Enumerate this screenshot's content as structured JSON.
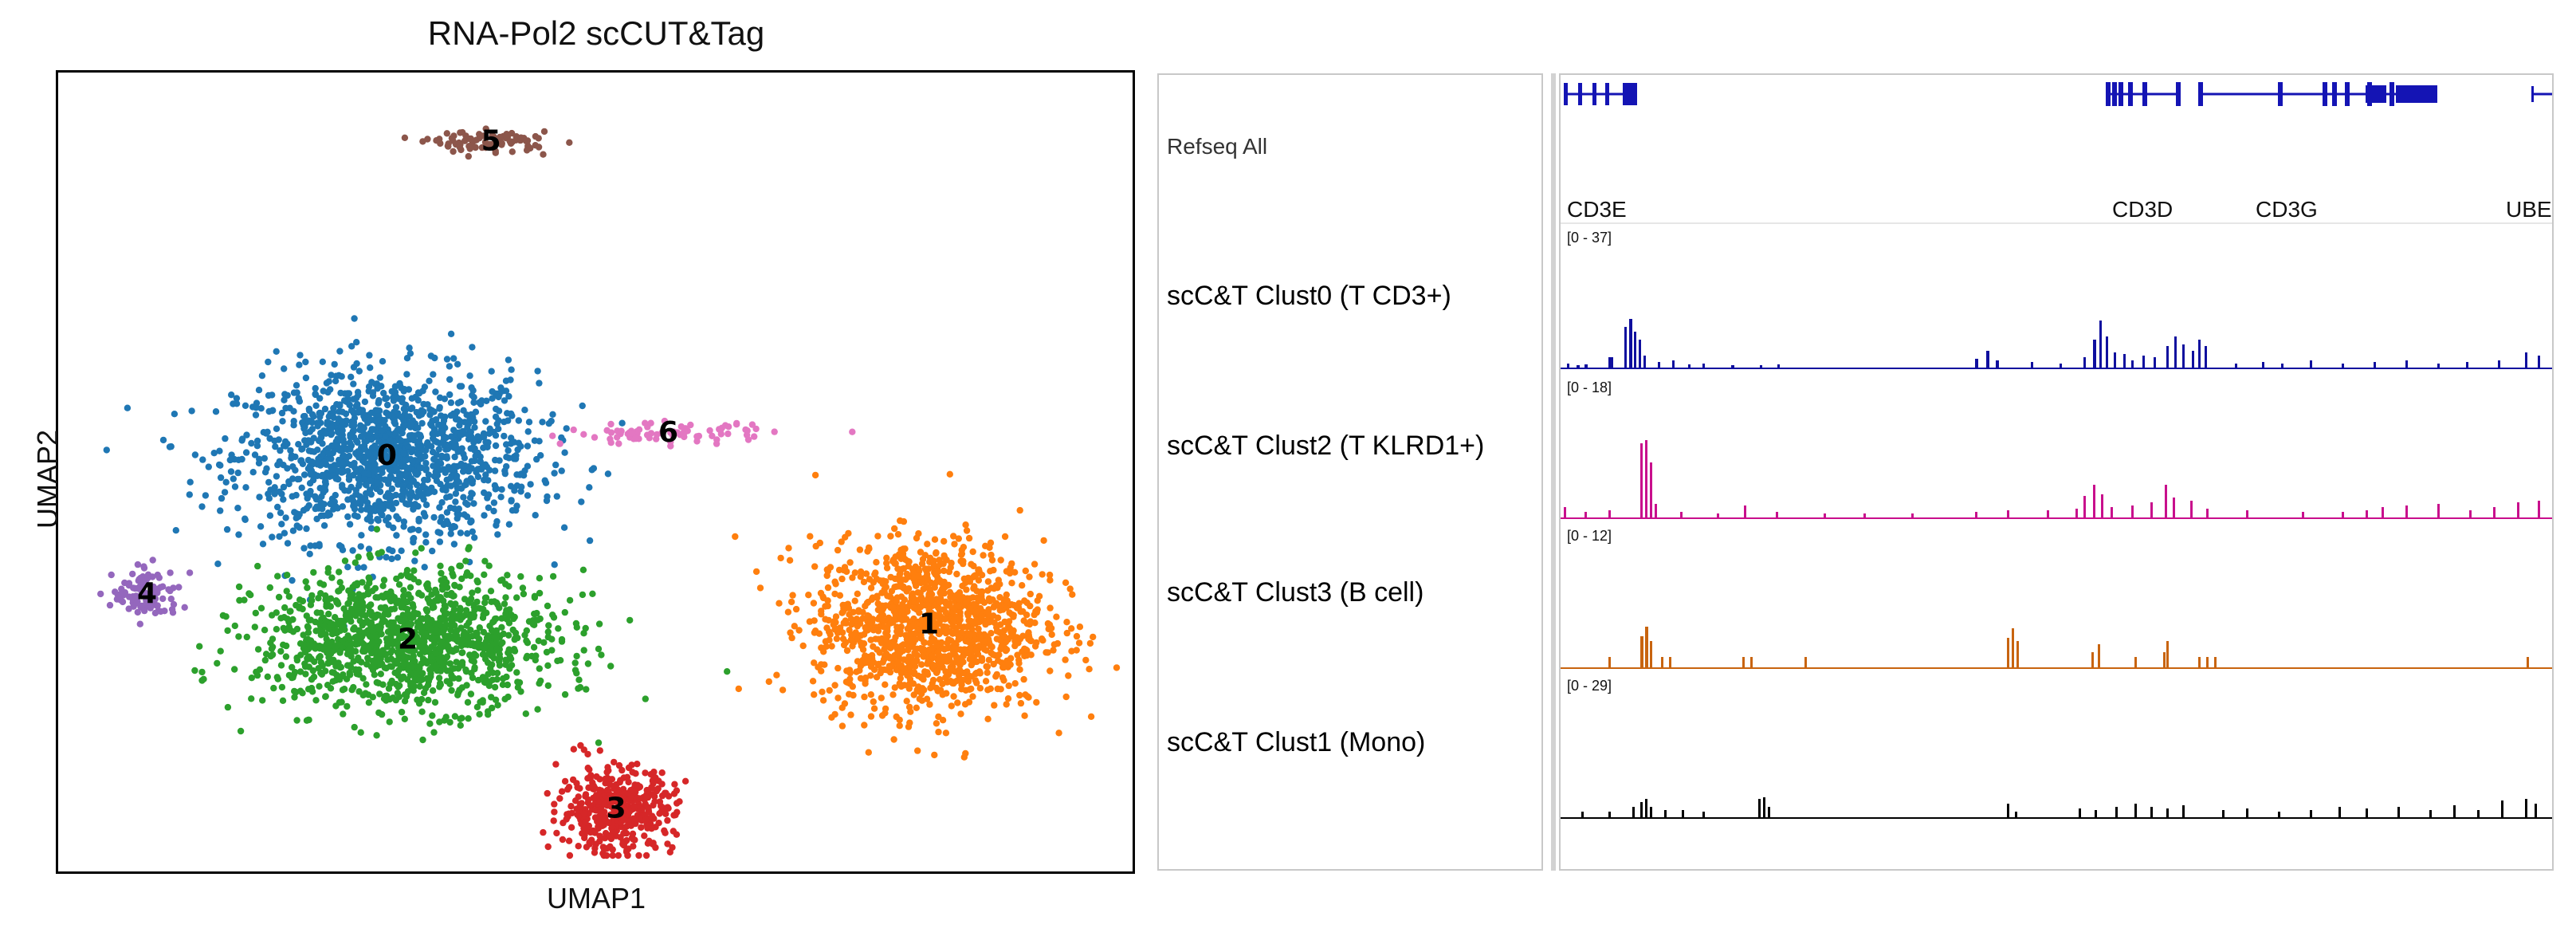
{
  "chart_data": [
    {
      "type": "scatter",
      "title": "RNA-Pol2 scCUT&Tag",
      "xlabel": "UMAP1",
      "ylabel": "UMAP2",
      "grid": false,
      "legend": "none",
      "clusters": [
        {
          "label": "0",
          "color": "#1f77b4",
          "center": [
            0.3,
            0.52
          ],
          "spread": [
            0.13,
            0.1
          ],
          "n": 1400
        },
        {
          "label": "1",
          "color": "#ff7f0e",
          "center": [
            0.82,
            0.3
          ],
          "spread": [
            0.1,
            0.1
          ],
          "n": 1300
        },
        {
          "label": "2",
          "color": "#2ca02c",
          "center": [
            0.32,
            0.28
          ],
          "spread": [
            0.13,
            0.08
          ],
          "n": 1300
        },
        {
          "label": "3",
          "color": "#d62728",
          "center": [
            0.52,
            0.06
          ],
          "spread": [
            0.05,
            0.05
          ],
          "n": 450
        },
        {
          "label": "4",
          "color": "#9467bd",
          "center": [
            0.07,
            0.34
          ],
          "spread": [
            0.03,
            0.03
          ],
          "n": 110
        },
        {
          "label": "5",
          "color": "#8c564b",
          "center": [
            0.4,
            0.93
          ],
          "spread": [
            0.05,
            0.02
          ],
          "n": 90
        },
        {
          "label": "6",
          "color": "#e377c2",
          "center": [
            0.57,
            0.55
          ],
          "spread": [
            0.09,
            0.02
          ],
          "n": 80
        }
      ]
    },
    {
      "type": "area",
      "refseq_track": "Refseq All",
      "genes": [
        "CD3E",
        "CD3D",
        "CD3G",
        "UBE"
      ],
      "tracks": [
        {
          "name": "scC&T Clust0 (T CD3+)",
          "range": "[0 - 37]",
          "color": "#0f0f9e"
        },
        {
          "name": "scC&T Clust2 (T KLRD1+)",
          "range": "[0 - 18]",
          "color": "#c80f8c"
        },
        {
          "name": "scC&T Clust3 (B cell)",
          "range": "[0 - 12]",
          "color": "#c8640f"
        },
        {
          "name": "scC&T Clust1 (Mono)",
          "range": "[0 - 29]",
          "color": "#000000"
        }
      ]
    }
  ]
}
